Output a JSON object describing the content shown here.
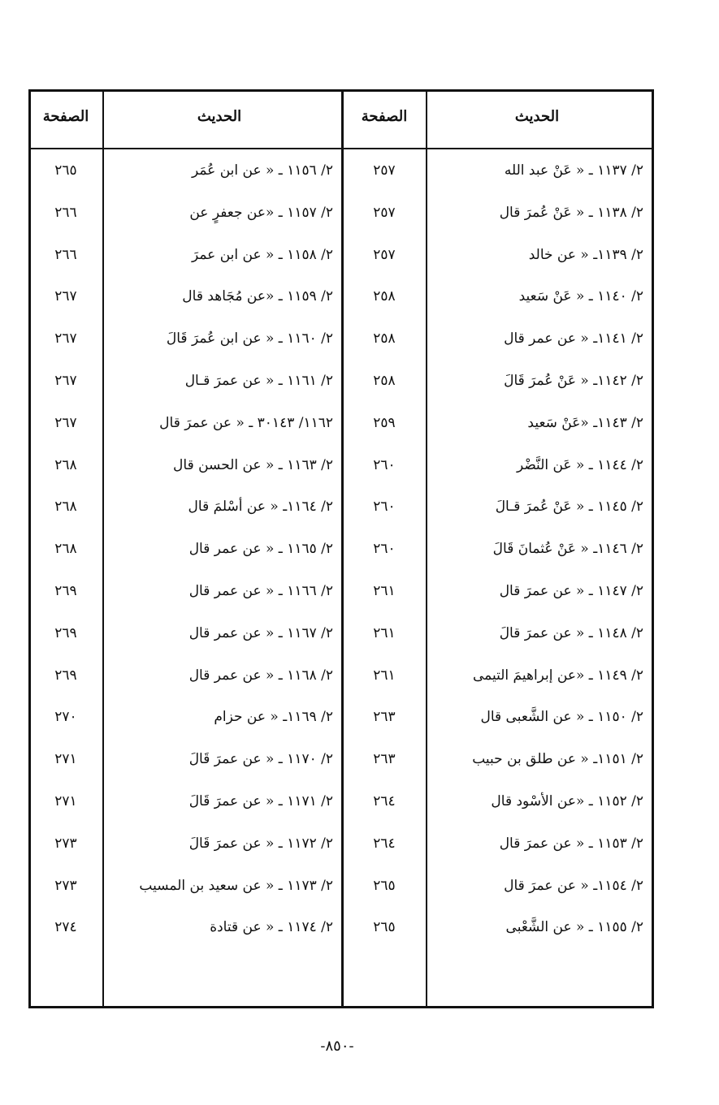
{
  "table": {
    "headers": [
      "الحديث",
      "الصفحة",
      "الحديث",
      "الصفحة"
    ],
    "rows": [
      [
        "٢/ ١١٣٧ ـ « عَنْ عبد الله",
        "٢٥٧",
        "٢/ ١١٥٦ ـ « عن ابن عُمَر",
        "٢٦٥"
      ],
      [
        "٢/ ١١٣٨ ـ « عَنْ عُمرَ قال",
        "٢٥٧",
        "٢/ ١١٥٧ ـ «عن جعفرٍ عن",
        "٢٦٦"
      ],
      [
        "٢/ ١١٣٩ـ « عن خالد",
        "٢٥٧",
        "٢/ ١١٥٨ ـ « عن ابن عمرَ",
        "٢٦٦"
      ],
      [
        "٢/ ١١٤٠ ـ « عَنْ سَعيد",
        "٢٥٨",
        "٢/ ١١٥٩ ـ «عن مُجَاهد قال",
        "٢٦٧"
      ],
      [
        "٢/ ١١٤١ـ « عن عمر قال",
        "٢٥٨",
        "٢/ ١١٦٠ ـ « عن ابن عُمرَ قَالَ",
        "٢٦٧"
      ],
      [
        "٢/ ١١٤٢ـ « عَنْ عُمرَ قَالَ",
        "٢٥٨",
        "٢/ ١١٦١ ـ « عن عمرَ قـال",
        "٢٦٧"
      ],
      [
        "٢/ ١١٤٣ـ «عَنْ سَعيد",
        "٢٥٩",
        "١١٦٢/ ٣٠١٤٣ ـ « عن عمرَ قال",
        "٢٦٧"
      ],
      [
        "٢/ ١١٤٤ ـ « عَن النَّضْر",
        "٢٦٠",
        "٢/ ١١٦٣ ـ « عن الحسن قال",
        "٢٦٨"
      ],
      [
        "٢/ ١١٤٥ ـ « عَنْ عُمرَ قـالَ",
        "٢٦٠",
        "٢/ ١١٦٤ـ « عن أسْلمَ قال",
        "٢٦٨"
      ],
      [
        "٢/ ١١٤٦ـ « عَنْ عُثمانَ قَالَ",
        "٢٦٠",
        "٢/ ١١٦٥ ـ « عن عمر قال",
        "٢٦٨"
      ],
      [
        "٢/ ١١٤٧ ـ « عن عمرَ قال",
        "٢٦١",
        "٢/ ١١٦٦ ـ « عن عمر قال",
        "٢٦٩"
      ],
      [
        "٢/ ١١٤٨ ـ « عن عمرَ قالَ",
        "٢٦١",
        "٢/ ١١٦٧ ـ « عن عمر قال",
        "٢٦٩"
      ],
      [
        "٢/ ١١٤٩ ـ «عن إبراهيمَ التيمى",
        "٢٦١",
        "٢/ ١١٦٨ ـ « عن عمر قال",
        "٢٦٩"
      ],
      [
        "٢/ ١١٥٠ ـ « عن الشَّعبى قال",
        "٢٦٣",
        "٢/ ١١٦٩ـ « عن حزام",
        "٢٧٠"
      ],
      [
        "٢/ ١١٥١ـ « عن طلق بن حبيب",
        "٢٦٣",
        "٢/ ١١٧٠ ـ « عن عمرَ قَالَ",
        "٢٧١"
      ],
      [
        "٢/ ١١٥٢ ـ «عن الأسْود قال",
        "٢٦٤",
        "٢/ ١١٧١ ـ « عن عمرَ قَالَ",
        "٢٧١"
      ],
      [
        "٢/ ١١٥٣ ـ « عن عمرَ قال",
        "٢٦٤",
        "٢/ ١١٧٢ ـ « عن عمرَ قَالَ",
        "٢٧٣"
      ],
      [
        "٢/ ١١٥٤ـ « عن عمرَ قال",
        "٢٦٥",
        "٢/ ١١٧٣ ـ « عن سعيد بن المسيب",
        "٢٧٣"
      ],
      [
        "٢/ ١١٥٥ ـ « عن الشَّعْبى",
        "٢٦٥",
        "٢/ ١١٧٤ ـ « عن قتادة",
        "٢٧٤"
      ]
    ]
  },
  "footer": {
    "page_number": "-٨٥٠-"
  }
}
